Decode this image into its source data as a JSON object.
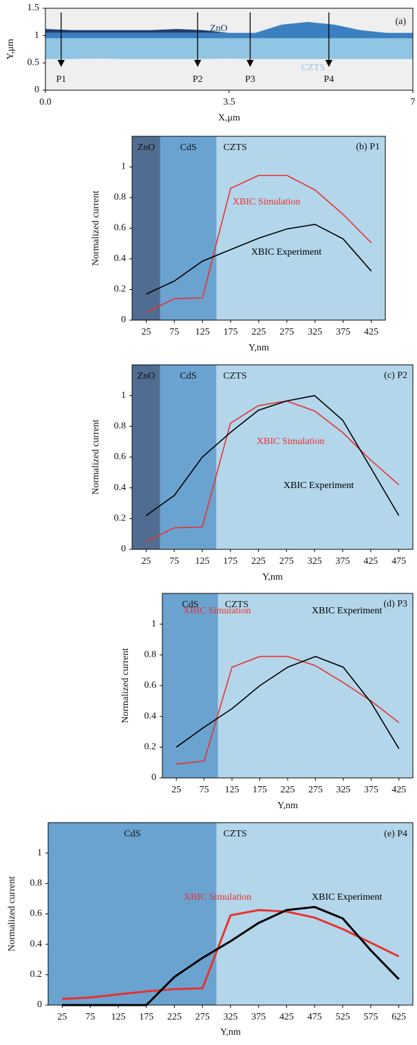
{
  "chart_data": [
    {
      "type": "cross-section",
      "title": "(a)",
      "xlabel": "X,μm",
      "ylabel": "Y,μm",
      "xlim": [
        0,
        7
      ],
      "ylim": [
        0,
        1.5
      ],
      "xticks": [
        {
          "value": 0,
          "label": "0.0"
        },
        3.5,
        7
      ],
      "yticks": [
        0,
        0.5,
        1,
        1.5
      ],
      "x": [
        0,
        0.5,
        1,
        1.5,
        2,
        2.5,
        3,
        3.5,
        4,
        4.5,
        5,
        5.5,
        6,
        6.5,
        7
      ],
      "series": [
        {
          "name": "ZnO",
          "color": "#1f3a6d",
          "values": [
            1.12,
            1.1,
            1.1,
            1.1,
            1.1,
            1.12,
            1.1,
            1.05,
            1.05,
            1.05,
            1.05,
            1.05,
            1.05,
            1.05,
            1.05
          ],
          "lower": [
            1.05,
            1.05,
            1.05,
            1.05,
            1.05,
            1.05,
            1.05,
            1.05,
            1.05,
            1.05,
            1.05,
            1.05,
            1.05,
            1.05,
            1.05
          ]
        },
        {
          "name": "CdS",
          "color": "#3b80c0",
          "values": [
            1.05,
            1.05,
            1.05,
            1.05,
            1.05,
            1.05,
            1.05,
            1.05,
            1.05,
            1.2,
            1.25,
            1.2,
            1.1,
            1.05,
            1.05
          ],
          "lower": [
            0.95,
            0.95,
            0.95,
            0.95,
            0.95,
            0.95,
            0.95,
            0.95,
            0.95,
            0.95,
            0.95,
            0.95,
            0.95,
            0.95,
            0.95
          ]
        },
        {
          "name": "CZTS",
          "color": "#90c5e3",
          "values": [
            0.95,
            0.95,
            0.95,
            0.95,
            0.95,
            0.95,
            0.95,
            0.95,
            0.95,
            0.95,
            0.95,
            0.95,
            0.95,
            0.95,
            0.95
          ],
          "lower": [
            0.57,
            0.57,
            0.58,
            0.57,
            0.57,
            0.57,
            0.57,
            0.58,
            0.57,
            0.57,
            0.57,
            0.57,
            0.57,
            0.57,
            0.57
          ]
        }
      ],
      "probes": [
        {
          "label": "P1",
          "x": 0.3
        },
        {
          "label": "P2",
          "x": 2.9
        },
        {
          "label": "P3",
          "x": 3.9
        },
        {
          "label": "P4",
          "x": 5.4
        }
      ]
    },
    {
      "type": "line",
      "title": "(b) P1",
      "xlabel": "Y,nm",
      "ylabel": "Normalized current",
      "xlim": [
        0,
        450
      ],
      "ylim": [
        0,
        1.2
      ],
      "xticks": [
        25,
        75,
        125,
        175,
        225,
        275,
        325,
        375,
        425
      ],
      "yticks": [
        0,
        0.2,
        0.4,
        0.6,
        0.8,
        1
      ],
      "regions": [
        {
          "name": "ZnO",
          "from": 0,
          "to": 50,
          "color": "#506d91"
        },
        {
          "name": "CdS",
          "from": 50,
          "to": 150,
          "color": "#6aa3d0"
        },
        {
          "name": "CZTS",
          "from": 150,
          "to": 450,
          "color": "#b3d6ea"
        }
      ],
      "x": [
        25,
        75,
        125,
        175,
        225,
        275,
        325,
        375,
        425
      ],
      "line_width": 1.6,
      "series": [
        {
          "name": "XBIC Simulation",
          "color": "#e8312f",
          "values": [
            0.05,
            0.14,
            0.145,
            0.86,
            0.945,
            0.945,
            0.85,
            0.69,
            0.505
          ]
        },
        {
          "name": "XBIC Experiment",
          "color": "#000000",
          "values": [
            0.17,
            0.255,
            0.385,
            0.46,
            0.535,
            0.595,
            0.625,
            0.53,
            0.32
          ]
        }
      ]
    },
    {
      "type": "line",
      "title": "(c) P2",
      "xlabel": "Y,nm",
      "ylabel": "Normalized current",
      "xlim": [
        0,
        500
      ],
      "ylim": [
        0,
        1.2
      ],
      "xticks": [
        25,
        75,
        125,
        175,
        225,
        275,
        325,
        375,
        425,
        475
      ],
      "yticks": [
        0,
        0.2,
        0.4,
        0.6,
        0.8,
        1
      ],
      "regions": [
        {
          "name": "ZnO",
          "from": 0,
          "to": 50,
          "color": "#506d91"
        },
        {
          "name": "CdS",
          "from": 50,
          "to": 150,
          "color": "#6aa3d0"
        },
        {
          "name": "CZTS",
          "from": 150,
          "to": 500,
          "color": "#b3d6ea"
        }
      ],
      "x": [
        25,
        75,
        125,
        175,
        225,
        275,
        325,
        375,
        425,
        475
      ],
      "line_width": 1.6,
      "series": [
        {
          "name": "XBIC Simulation",
          "color": "#e8312f",
          "values": [
            0.05,
            0.14,
            0.145,
            0.82,
            0.935,
            0.965,
            0.9,
            0.76,
            0.58,
            0.42
          ]
        },
        {
          "name": "XBIC Experiment",
          "color": "#000000",
          "values": [
            0.22,
            0.35,
            0.6,
            0.76,
            0.905,
            0.965,
            1.0,
            0.84,
            0.53,
            0.22
          ]
        }
      ]
    },
    {
      "type": "line",
      "title": "(d) P3",
      "xlabel": "Y,nm",
      "ylabel": "Normalized current",
      "xlim": [
        0,
        450
      ],
      "ylim": [
        0,
        1.2
      ],
      "xticks": [
        25,
        75,
        125,
        175,
        225,
        275,
        325,
        375,
        425
      ],
      "yticks": [
        0,
        0.2,
        0.4,
        0.6,
        0.8,
        1
      ],
      "regions": [
        {
          "name": "CdS",
          "from": 0,
          "to": 100,
          "color": "#6aa3d0"
        },
        {
          "name": "CZTS",
          "from": 100,
          "to": 450,
          "color": "#b3d6ea"
        }
      ],
      "x": [
        25,
        75,
        125,
        175,
        225,
        275,
        325,
        375,
        425
      ],
      "line_width": 1.6,
      "series": [
        {
          "name": "XBIC Simulation",
          "color": "#e8312f",
          "values": [
            0.09,
            0.11,
            0.72,
            0.79,
            0.79,
            0.73,
            0.62,
            0.5,
            0.36
          ]
        },
        {
          "name": "XBIC Experiment",
          "color": "#000000",
          "values": [
            0.2,
            0.33,
            0.45,
            0.6,
            0.72,
            0.79,
            0.72,
            0.49,
            0.19
          ]
        }
      ]
    },
    {
      "type": "line",
      "title": "(e) P4",
      "xlabel": "Y,nm",
      "ylabel": "Normalized current",
      "xlim": [
        0,
        650
      ],
      "ylim": [
        0,
        1.2
      ],
      "xticks": [
        25,
        75,
        125,
        175,
        225,
        275,
        325,
        375,
        425,
        475,
        525,
        575,
        625
      ],
      "yticks": [
        0,
        0.2,
        0.4,
        0.6,
        0.8,
        1
      ],
      "regions": [
        {
          "name": "CdS",
          "from": 0,
          "to": 300,
          "color": "#6aa3d0"
        },
        {
          "name": "CZTS",
          "from": 300,
          "to": 650,
          "color": "#b3d6ea"
        }
      ],
      "x": [
        25,
        75,
        125,
        175,
        225,
        275,
        325,
        375,
        425,
        475,
        525,
        575,
        625
      ],
      "line_width": 3,
      "series": [
        {
          "name": "XBIC Simulation",
          "color": "#e8312f",
          "values": [
            0.04,
            0.05,
            0.07,
            0.09,
            0.105,
            0.11,
            0.59,
            0.625,
            0.615,
            0.575,
            0.5,
            0.41,
            0.32
          ]
        },
        {
          "name": "XBIC Experiment",
          "color": "#000000",
          "values": [
            0,
            0,
            0,
            0,
            0.185,
            0.31,
            0.42,
            0.54,
            0.625,
            0.645,
            0.57,
            0.36,
            0.17
          ]
        }
      ]
    }
  ]
}
